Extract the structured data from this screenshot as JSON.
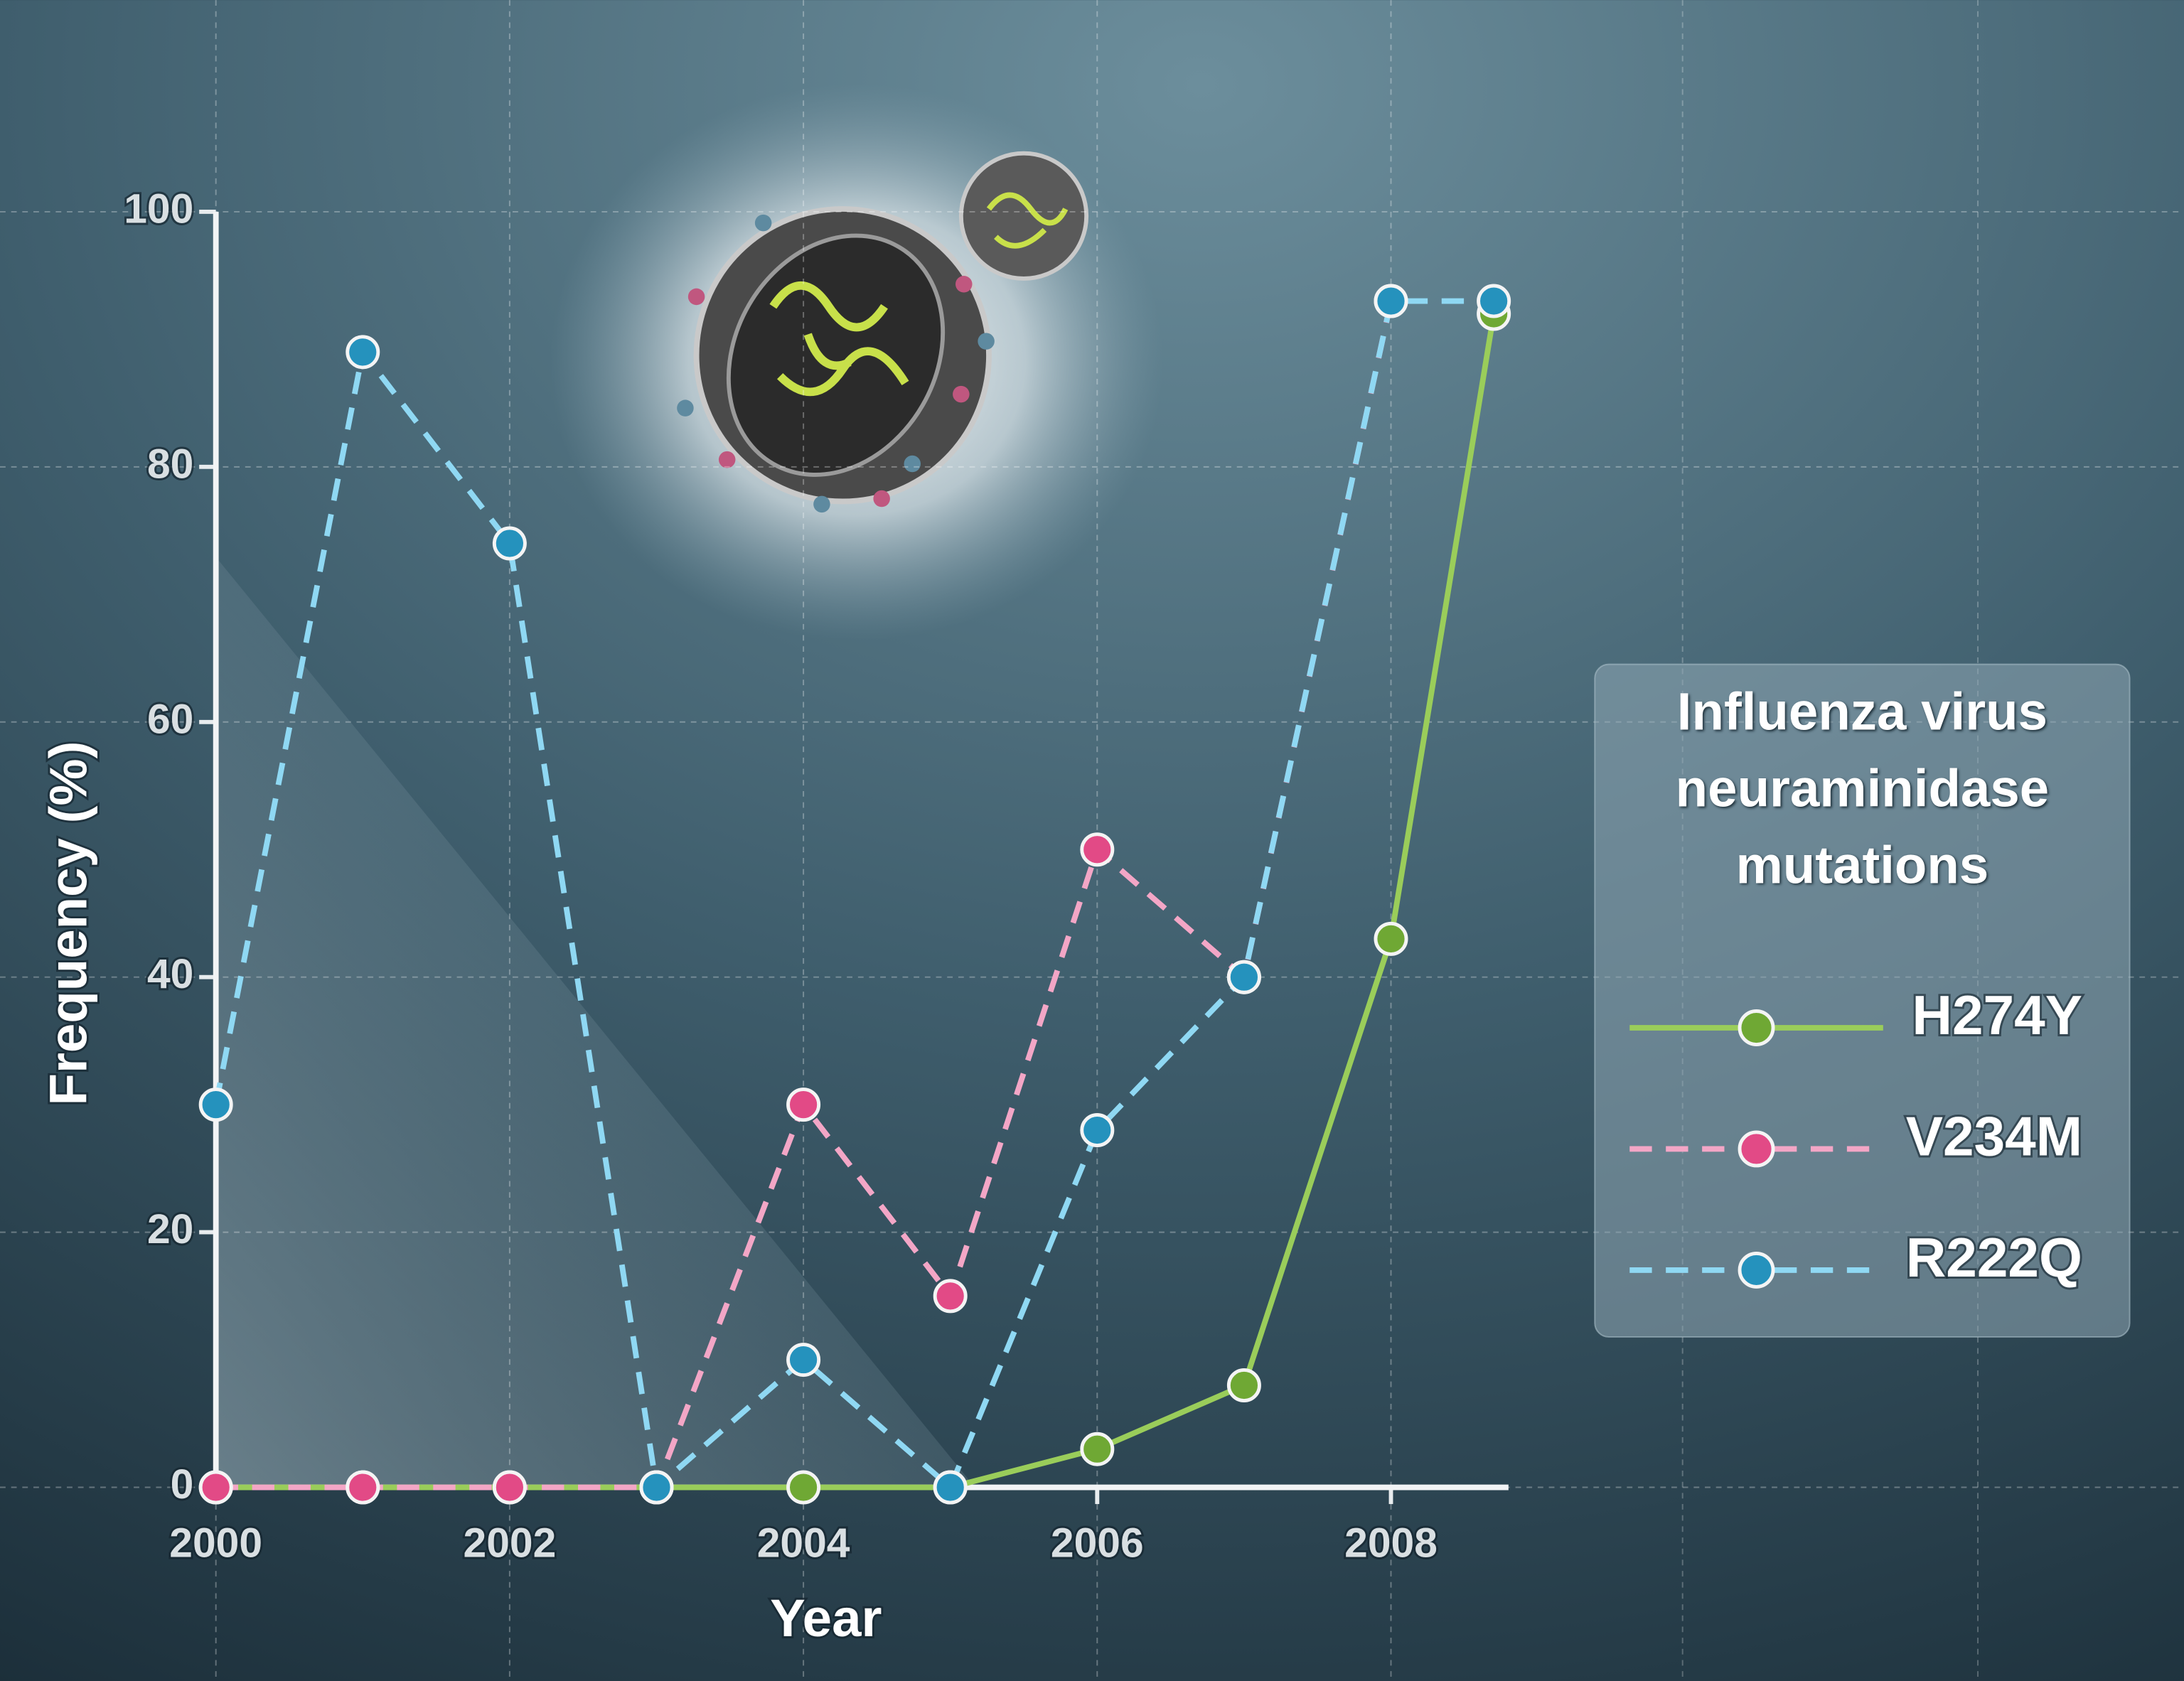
{
  "chart_data": {
    "type": "line",
    "x_label": "Year",
    "y_label": "Frequency (%)",
    "legend_title": "Influenza virus neuraminidase mutations",
    "x": [
      2000,
      2001,
      2002,
      2003,
      2004,
      2005,
      2006,
      2007,
      2008,
      2008.7
    ],
    "series": [
      {
        "name": "H274Y",
        "color": "#9acd5a",
        "marker_color": "#6fa834",
        "line_style": "solid",
        "values": [
          0,
          0,
          0,
          0,
          0,
          0,
          3,
          8,
          43,
          92
        ]
      },
      {
        "name": "V234M",
        "color": "#f3a6c6",
        "marker_color": "#e24a86",
        "line_style": "dashed",
        "values": [
          0,
          0,
          0,
          0,
          30,
          15,
          50,
          40,
          93,
          null
        ]
      },
      {
        "name": "R222Q",
        "color": "#8fd8f3",
        "marker_color": "#2592bd",
        "line_style": "dashed",
        "values": [
          30,
          89,
          74,
          0,
          10,
          0,
          28,
          40,
          93,
          93
        ]
      }
    ],
    "xlim": [
      2000,
      2008.8
    ],
    "xticks": [
      2000,
      2002,
      2004,
      2006,
      2008
    ],
    "ylim": [
      0,
      100
    ],
    "yticks": [
      0,
      20,
      40,
      60,
      80,
      100
    ],
    "grid": true,
    "legend_position": "right"
  }
}
